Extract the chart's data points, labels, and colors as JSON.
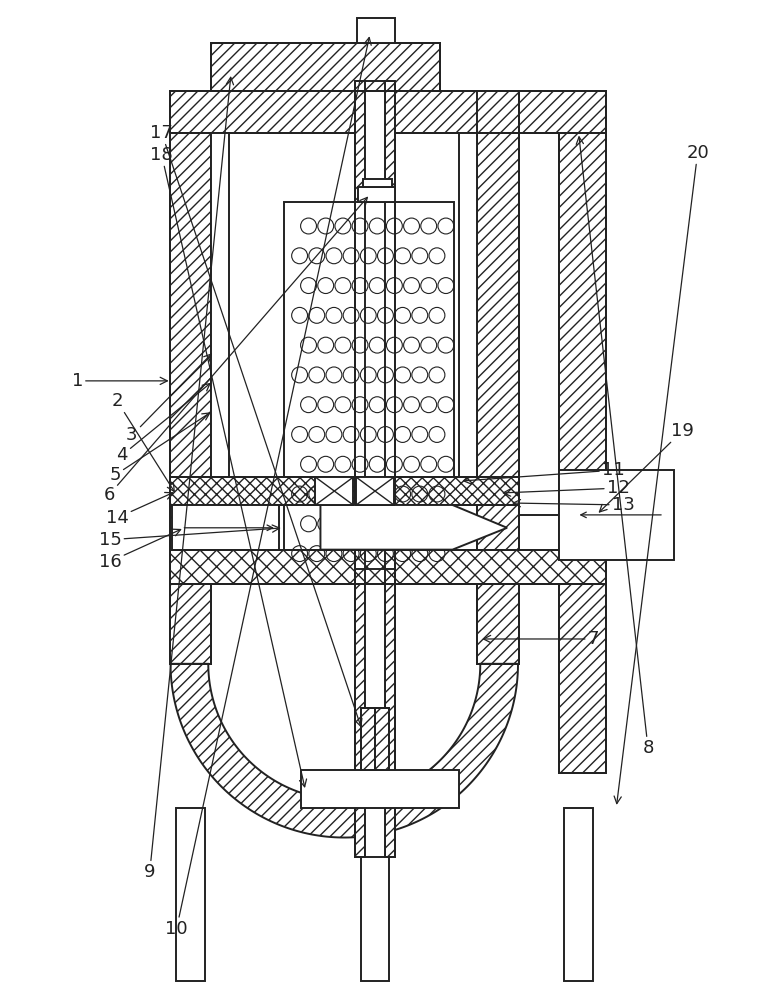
{
  "bg_color": "#ffffff",
  "line_color": "#222222",
  "figsize": [
    7.64,
    10.0
  ],
  "dpi": 100
}
